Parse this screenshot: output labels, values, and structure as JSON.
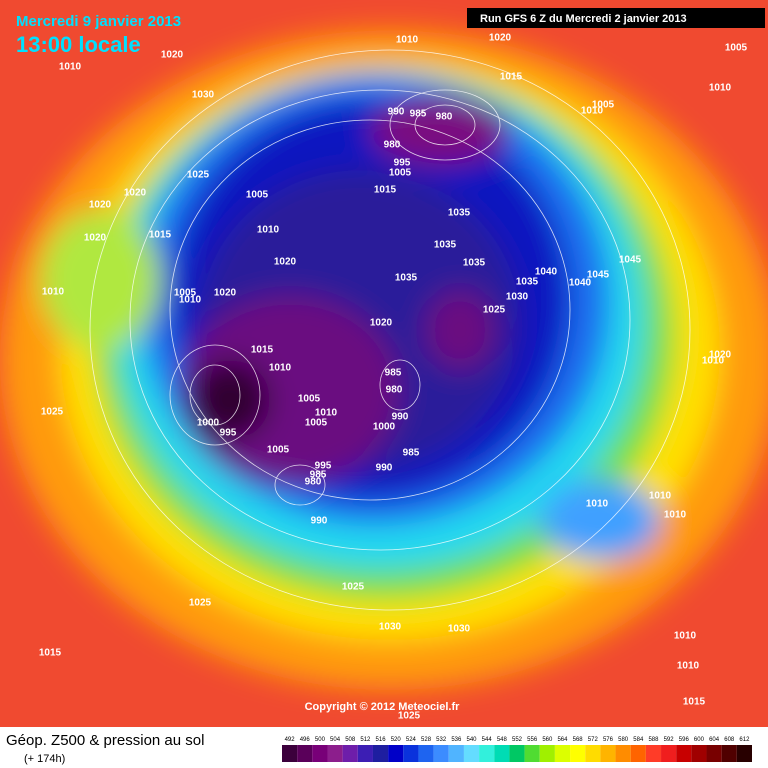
{
  "header": {
    "date": "Mercredi 9 janvier 2013",
    "time": "13:00 locale",
    "run": "Run GFS 6 Z du Mercredi 2 janvier 2013"
  },
  "footer": {
    "title": "Géop. Z500 & pression au sol",
    "lead": "(+ 174h)",
    "copyright": "Copyright © 2012 Meteociel.fr"
  },
  "isobar_labels": [
    1020,
    1010,
    1030,
    1010,
    1020,
    1015,
    1005,
    1010,
    1005,
    1010,
    990,
    985,
    980,
    980,
    995,
    1005,
    1025,
    1020,
    1020,
    1005,
    1015,
    1035,
    1010,
    1015,
    1020,
    1035,
    1020,
    1035,
    1040,
    1045,
    1045,
    1035,
    1040,
    1030,
    1005,
    1010,
    1020,
    1035,
    1010,
    1025,
    1020,
    1015,
    1020,
    1010,
    1010,
    985,
    980,
    1005,
    1025,
    1010,
    990,
    1000,
    995,
    1005,
    1000,
    1005,
    985,
    995,
    985,
    990,
    980,
    990,
    1010,
    1010,
    1010,
    1025,
    1025,
    1030,
    1030,
    1015,
    1010,
    1010,
    1015,
    1025
  ],
  "colorbar": {
    "labels": [
      492,
      496,
      500,
      504,
      508,
      512,
      516,
      520,
      524,
      528,
      532,
      536,
      540,
      544,
      548,
      552,
      556,
      560,
      564,
      568,
      572,
      576,
      580,
      584,
      588,
      592,
      596,
      600,
      604,
      608,
      612
    ],
    "colors": [
      "#3c003c",
      "#5a005a",
      "#780078",
      "#8c1e8c",
      "#6e1eaa",
      "#3c1eb4",
      "#1e1ea0",
      "#0000c8",
      "#0a32dc",
      "#1e64f0",
      "#3c8cff",
      "#50b4ff",
      "#64dcff",
      "#32f0dc",
      "#00dcb4",
      "#00c864",
      "#50dc32",
      "#a0f000",
      "#dcff00",
      "#ffff00",
      "#ffdc00",
      "#ffb400",
      "#ff8c00",
      "#ff6400",
      "#ff3c28",
      "#f01e1e",
      "#c80000",
      "#a00000",
      "#780000",
      "#500000",
      "#280000"
    ]
  }
}
